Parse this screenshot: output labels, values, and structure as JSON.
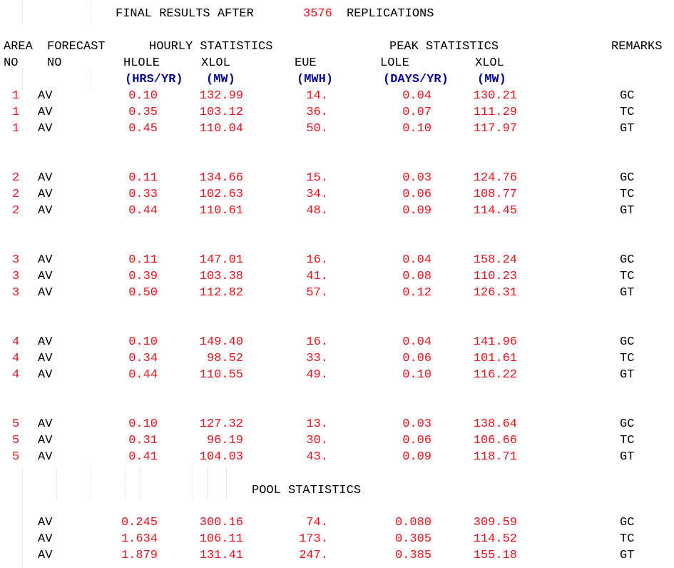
{
  "title": {
    "prefix": "FINAL RESULTS AFTER",
    "replications": "3576",
    "suffix": "REPLICATIONS"
  },
  "headers": {
    "area": "AREA",
    "area_no": "NO",
    "forecast": "FORECAST",
    "forecast_no": "NO",
    "hourly": "HOURLY STATISTICS",
    "peak": "PEAK STATISTICS",
    "remarks": "REMARKS",
    "hlole": "HLOLE",
    "hlole_unit": "(HRS/YR)",
    "xlol_h": "XLOL",
    "xlol_h_unit": "(MW)",
    "eue": "EUE",
    "eue_unit": "(MWH)",
    "lole": "LOLE",
    "lole_unit": "(DAYS/YR)",
    "xlol_p": "XLOL",
    "xlol_p_unit": "(MW)"
  },
  "areas": [
    {
      "rows": [
        {
          "area": "1",
          "fc": "AV",
          "hlole": "0.10",
          "xlol_h": "132.99",
          "eue": "14.",
          "lole": "0.04",
          "xlol_p": "130.21",
          "remark": "GC"
        },
        {
          "area": "1",
          "fc": "AV",
          "hlole": "0.35",
          "xlol_h": "103.12",
          "eue": "36.",
          "lole": "0.07",
          "xlol_p": "111.29",
          "remark": "TC"
        },
        {
          "area": "1",
          "fc": "AV",
          "hlole": "0.45",
          "xlol_h": "110.04",
          "eue": "50.",
          "lole": "0.10",
          "xlol_p": "117.97",
          "remark": "GT"
        }
      ]
    },
    {
      "rows": [
        {
          "area": "2",
          "fc": "AV",
          "hlole": "0.11",
          "xlol_h": "134.66",
          "eue": "15.",
          "lole": "0.03",
          "xlol_p": "124.76",
          "remark": "GC"
        },
        {
          "area": "2",
          "fc": "AV",
          "hlole": "0.33",
          "xlol_h": "102.63",
          "eue": "34.",
          "lole": "0.06",
          "xlol_p": "108.77",
          "remark": "TC"
        },
        {
          "area": "2",
          "fc": "AV",
          "hlole": "0.44",
          "xlol_h": "110.61",
          "eue": "48.",
          "lole": "0.09",
          "xlol_p": "114.45",
          "remark": "GT"
        }
      ]
    },
    {
      "rows": [
        {
          "area": "3",
          "fc": "AV",
          "hlole": "0.11",
          "xlol_h": "147.01",
          "eue": "16.",
          "lole": "0.04",
          "xlol_p": "158.24",
          "remark": "GC"
        },
        {
          "area": "3",
          "fc": "AV",
          "hlole": "0.39",
          "xlol_h": "103.38",
          "eue": "41.",
          "lole": "0.08",
          "xlol_p": "110.23",
          "remark": "TC"
        },
        {
          "area": "3",
          "fc": "AV",
          "hlole": "0.50",
          "xlol_h": "112.82",
          "eue": "57.",
          "lole": "0.12",
          "xlol_p": "126.31",
          "remark": "GT"
        }
      ]
    },
    {
      "rows": [
        {
          "area": "4",
          "fc": "AV",
          "hlole": "0.10",
          "xlol_h": "149.40",
          "eue": "16.",
          "lole": "0.04",
          "xlol_p": "141.96",
          "remark": "GC"
        },
        {
          "area": "4",
          "fc": "AV",
          "hlole": "0.34",
          "xlol_h": "98.52",
          "eue": "33.",
          "lole": "0.06",
          "xlol_p": "101.61",
          "remark": "TC"
        },
        {
          "area": "4",
          "fc": "AV",
          "hlole": "0.44",
          "xlol_h": "110.55",
          "eue": "49.",
          "lole": "0.10",
          "xlol_p": "116.22",
          "remark": "GT"
        }
      ]
    },
    {
      "rows": [
        {
          "area": "5",
          "fc": "AV",
          "hlole": "0.10",
          "xlol_h": "127.32",
          "eue": "13.",
          "lole": "0.03",
          "xlol_p": "138.64",
          "remark": "GC"
        },
        {
          "area": "5",
          "fc": "AV",
          "hlole": "0.31",
          "xlol_h": "96.19",
          "eue": "30.",
          "lole": "0.06",
          "xlol_p": "106.66",
          "remark": "TC"
        },
        {
          "area": "5",
          "fc": "AV",
          "hlole": "0.41",
          "xlol_h": "104.03",
          "eue": "43.",
          "lole": "0.09",
          "xlol_p": "118.71",
          "remark": "GT"
        }
      ]
    }
  ],
  "pool": {
    "title": "POOL STATISTICS",
    "rows": [
      {
        "fc": "AV",
        "hlole": "0.245",
        "xlol_h": "300.16",
        "eue": "74.",
        "lole": "0.080",
        "xlol_p": "309.59",
        "remark": "GC"
      },
      {
        "fc": "AV",
        "hlole": "1.634",
        "xlol_h": "106.11",
        "eue": "173.",
        "lole": "0.305",
        "xlol_p": "114.52",
        "remark": "TC"
      },
      {
        "fc": "AV",
        "hlole": "1.879",
        "xlol_h": "131.41",
        "eue": "247.",
        "lole": "0.385",
        "xlol_p": "155.18",
        "remark": "GT"
      }
    ]
  }
}
